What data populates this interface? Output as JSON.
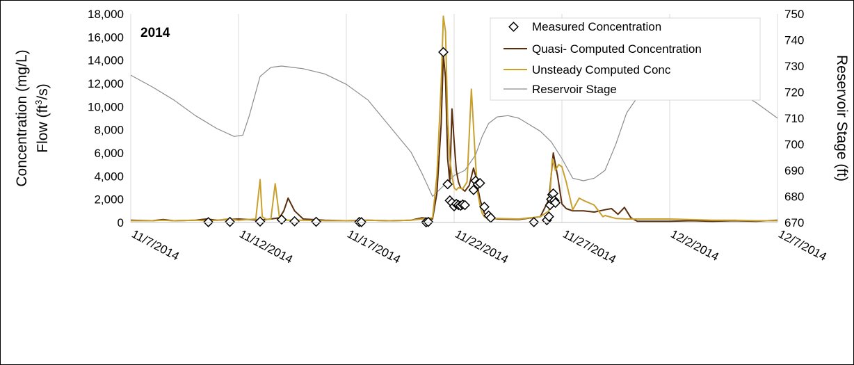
{
  "chart_data": {
    "type": "line",
    "annotation": "2014",
    "ylabel_left_line1": "Concentration (mg/L)",
    "ylabel_left_line2_pre": "Flow (ft",
    "ylabel_left_line2_sup": "3",
    "ylabel_left_line2_post": "/s)",
    "ylabel_right": "Reservoir Stage (ft)",
    "ylim_left": [
      0,
      18000
    ],
    "ylim_right": [
      670,
      750
    ],
    "yticks_left": [
      "0",
      "2,000",
      "4,000",
      "6,000",
      "8,000",
      "10,000",
      "12,000",
      "14,000",
      "16,000",
      "18,000"
    ],
    "yticks_right": [
      "670",
      "680",
      "690",
      "700",
      "710",
      "720",
      "730",
      "740",
      "750"
    ],
    "xlim_days": [
      0,
      30
    ],
    "xtick_days": [
      0,
      5,
      10,
      15,
      20,
      25,
      30
    ],
    "xtick_labels": [
      "11/7/2014",
      "11/12/2014",
      "11/17/2014",
      "11/22/2014",
      "11/27/2014",
      "12/2/2014",
      "12/7/2014"
    ],
    "grid": "vertical",
    "legend_position": "top-right",
    "colors": {
      "measured": "#000000",
      "quasi": "#5a2d0c",
      "unsteady": "#c8a02e",
      "stage": "#8c8c8c"
    },
    "series": [
      {
        "name": "Measured Concentration",
        "kind": "marker",
        "x": [
          3.6,
          4.6,
          6.0,
          7.0,
          7.6,
          8.6,
          10.6,
          10.7,
          13.7,
          13.8,
          14.5,
          14.7,
          14.8,
          14.9,
          15.0,
          15.1,
          15.2,
          15.3,
          15.4,
          15.5,
          15.9,
          16.0,
          16.1,
          16.2,
          16.4,
          16.6,
          16.7,
          18.7,
          19.3,
          19.4,
          19.45,
          19.5,
          19.55,
          19.6,
          19.65,
          19.7
        ],
        "y": [
          30,
          50,
          80,
          250,
          100,
          60,
          40,
          30,
          20,
          50,
          14700,
          3300,
          1900,
          1700,
          1400,
          1600,
          1500,
          1450,
          1550,
          1500,
          2800,
          3600,
          3300,
          3400,
          1350,
          600,
          400,
          30,
          200,
          500,
          1500,
          2000,
          2400,
          2500,
          1900,
          1700
        ]
      },
      {
        "name": "Quasi- Computed Concentration",
        "kind": "line",
        "x": [
          0,
          1,
          1.5,
          2,
          3,
          3.5,
          4,
          4.5,
          5,
          6,
          6.5,
          6.9,
          7.1,
          7.3,
          7.6,
          8,
          9,
          10,
          11,
          12,
          13,
          13.5,
          14,
          14.2,
          14.4,
          14.5,
          14.6,
          14.7,
          14.8,
          14.9,
          15.0,
          15.1,
          15.2,
          15.3,
          15.5,
          15.7,
          15.9,
          16.0,
          16.2,
          16.4,
          16.7,
          17,
          18,
          19,
          19.4,
          19.6,
          19.8,
          20.0,
          20.2,
          20.5,
          21,
          21.5,
          22,
          22.3,
          22.6,
          22.9,
          23.2,
          23.5,
          24,
          25,
          26,
          27,
          28,
          29,
          30
        ],
        "y": [
          200,
          150,
          250,
          150,
          200,
          300,
          200,
          250,
          300,
          200,
          300,
          400,
          1000,
          2100,
          1000,
          300,
          200,
          150,
          200,
          150,
          200,
          400,
          300,
          2500,
          8500,
          14500,
          12500,
          5500,
          3500,
          9800,
          7000,
          4500,
          3500,
          3000,
          2700,
          3200,
          4700,
          4000,
          2000,
          800,
          400,
          300,
          250,
          500,
          2000,
          6000,
          4000,
          1600,
          1200,
          1000,
          1000,
          900,
          1100,
          1200,
          700,
          1300,
          400,
          100,
          100,
          100,
          150,
          100,
          150,
          100,
          200
        ]
      },
      {
        "name": "Unsteady Computed Conc",
        "kind": "line",
        "x": [
          0,
          1,
          1.5,
          2,
          3,
          3.5,
          4,
          4.5,
          5,
          5.8,
          6.0,
          6.1,
          6.3,
          6.5,
          6.7,
          6.9,
          7.1,
          7.3,
          8,
          9,
          10,
          11,
          12,
          13,
          13.5,
          14,
          14.2,
          14.4,
          14.5,
          14.6,
          14.7,
          14.8,
          14.9,
          15.0,
          15.1,
          15.2,
          15.4,
          15.6,
          15.8,
          16.0,
          16.1,
          16.2,
          16.3,
          16.4,
          16.6,
          17,
          18,
          19,
          19.4,
          19.55,
          19.7,
          19.85,
          20.0,
          20.2,
          20.5,
          20.8,
          21,
          21.5,
          21.9,
          22,
          22.5,
          23,
          25,
          27,
          28,
          29,
          30
        ],
        "y": [
          150,
          150,
          200,
          150,
          200,
          150,
          200,
          300,
          200,
          300,
          3700,
          500,
          250,
          300,
          3350,
          400,
          250,
          200,
          200,
          150,
          150,
          200,
          150,
          200,
          300,
          400,
          4000,
          12000,
          17800,
          16500,
          9000,
          5500,
          4000,
          3000,
          2800,
          3000,
          2900,
          3500,
          11500,
          5000,
          2500,
          1500,
          800,
          500,
          300,
          350,
          300,
          500,
          1000,
          5500,
          4500,
          5000,
          4800,
          3500,
          1100,
          2100,
          1900,
          1500,
          500,
          600,
          350,
          300,
          300,
          200,
          200,
          150,
          150
        ]
      },
      {
        "name": "Reservoir Stage",
        "kind": "line",
        "axis": "right",
        "x": [
          0,
          1,
          2,
          3,
          4,
          4.8,
          5.2,
          5.5,
          6.0,
          6.5,
          7,
          7.5,
          8,
          9,
          10,
          11,
          12,
          13,
          13.5,
          14,
          14.5,
          15,
          15.5,
          16,
          16.3,
          16.6,
          17,
          17.5,
          18,
          19,
          19.5,
          20,
          20.5,
          21,
          21.5,
          22,
          22.5,
          23,
          23.5,
          24,
          24.5,
          25,
          25.5,
          26,
          26.5,
          27,
          27.5,
          28,
          29,
          30
        ],
        "y": [
          726.5,
          722,
          717,
          711,
          706,
          703,
          703.5,
          711,
          726,
          729.5,
          730,
          729.5,
          729,
          727,
          723,
          717,
          707,
          697,
          689,
          680,
          684,
          688,
          690,
          696,
          703,
          708,
          710.5,
          711,
          710,
          705,
          701,
          694.5,
          687,
          686,
          687,
          690,
          700,
          712,
          718,
          720,
          719.5,
          718,
          717.5,
          721,
          723,
          723.5,
          722.5,
          721,
          716,
          710
        ]
      }
    ]
  }
}
